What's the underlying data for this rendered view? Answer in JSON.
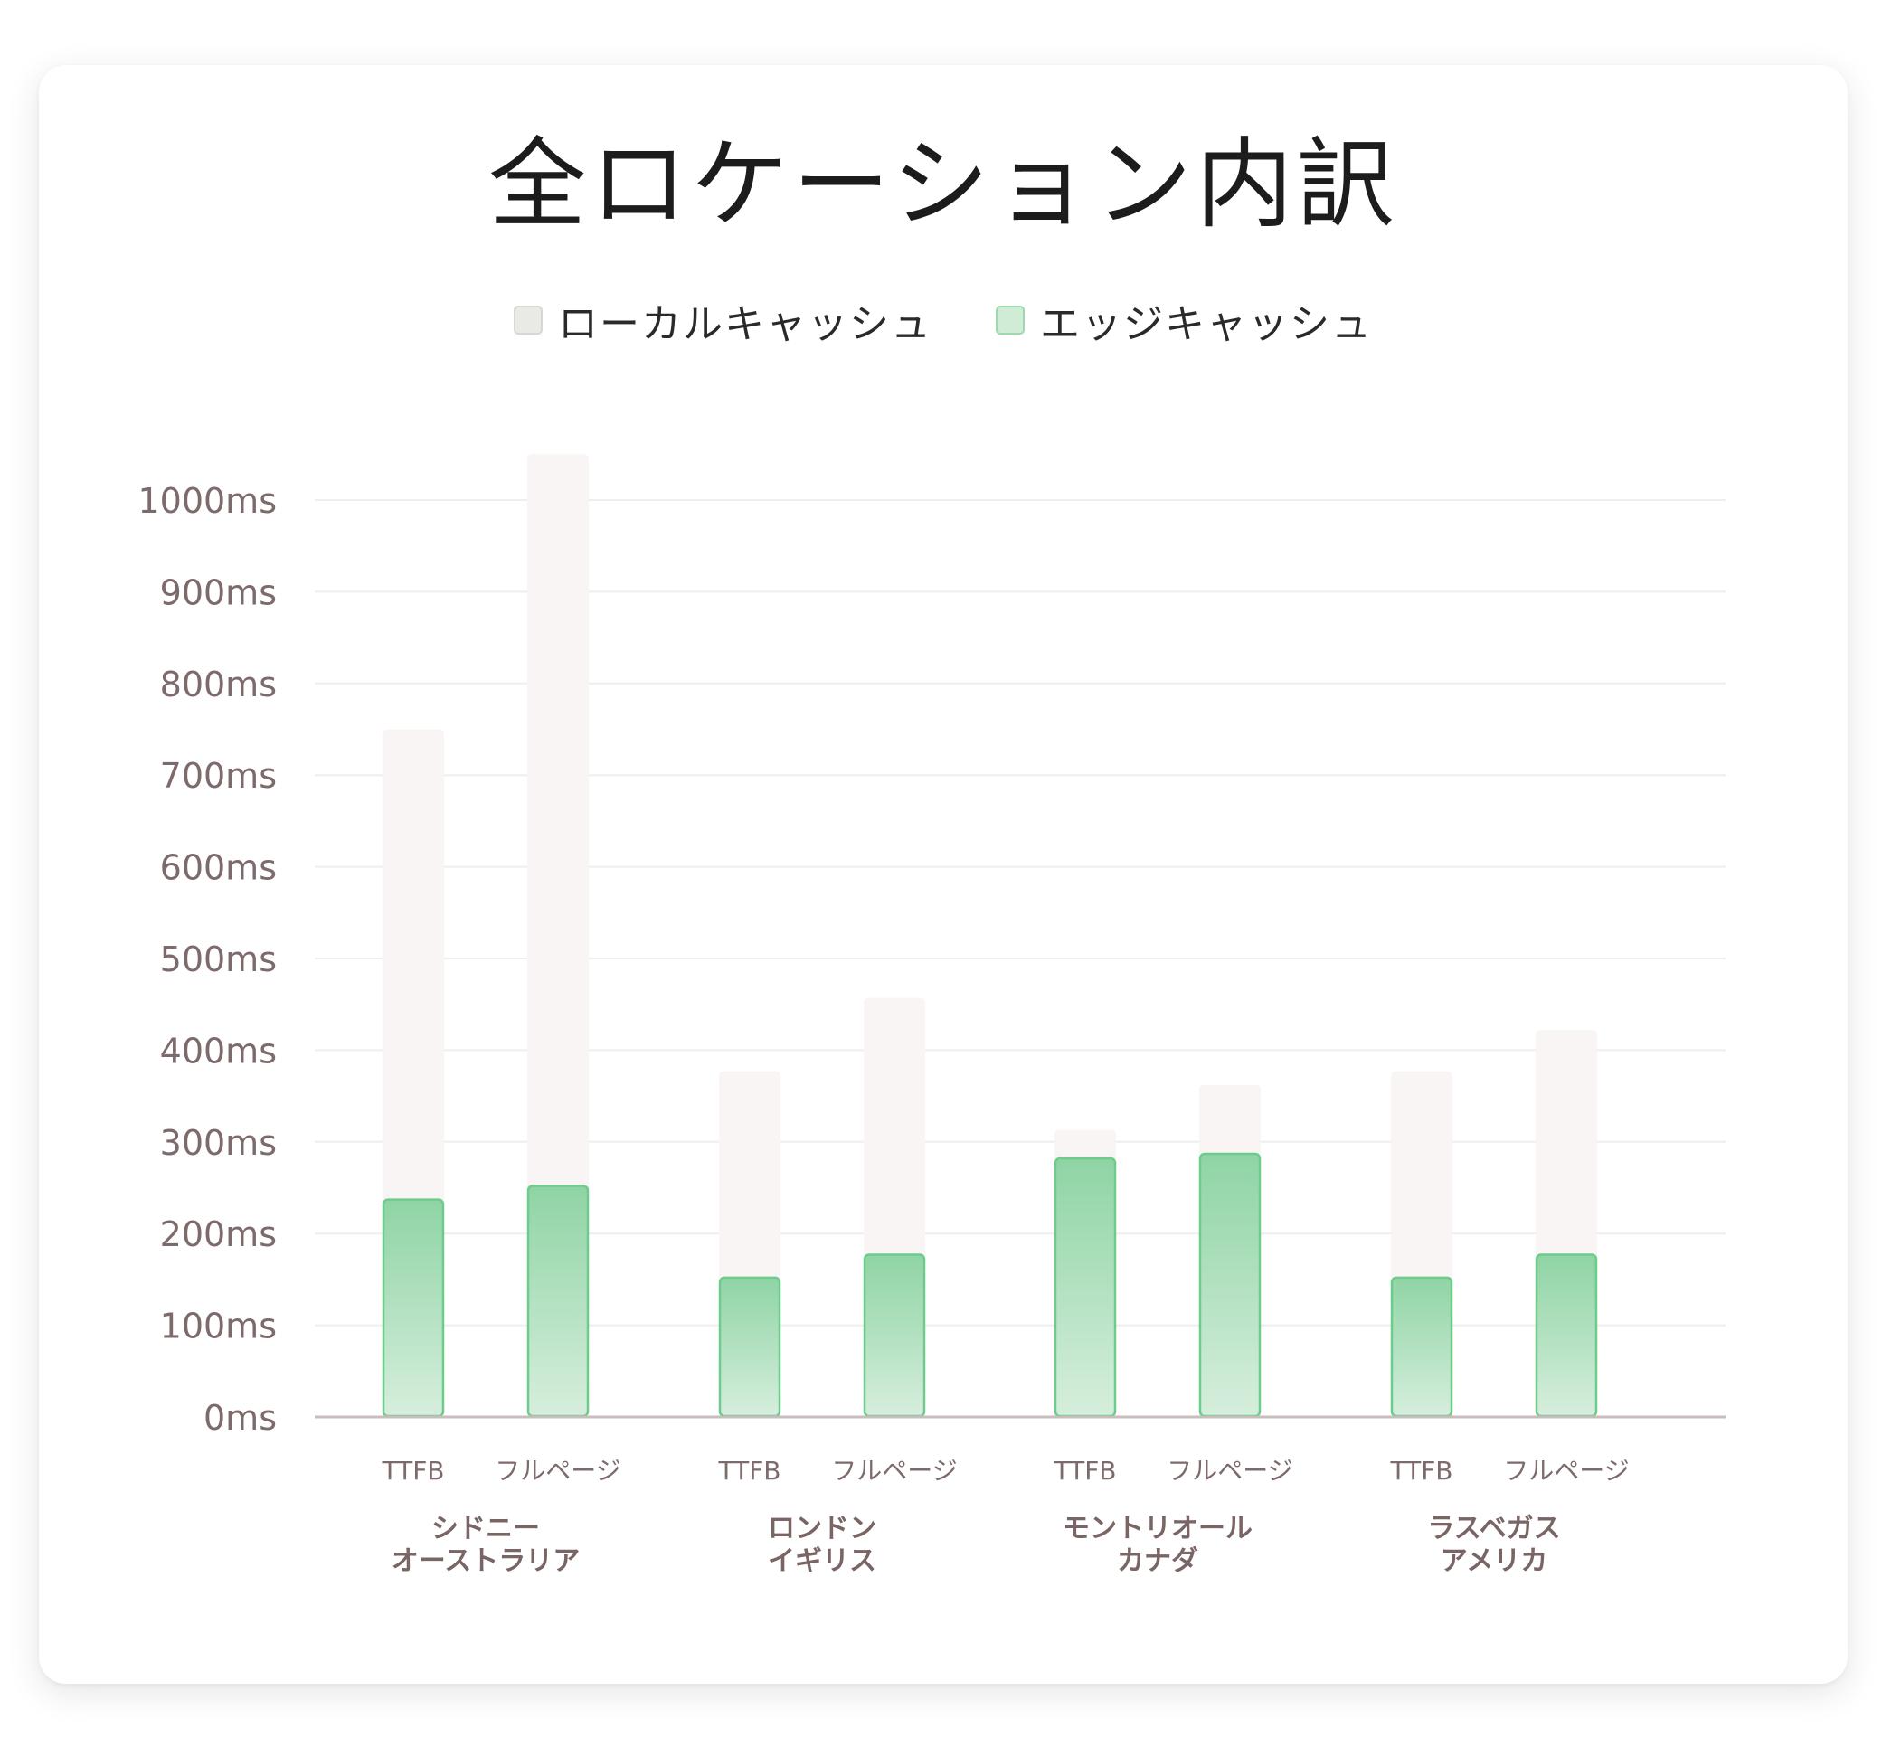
{
  "title": "全ロケーション内訳",
  "legend": [
    {
      "label": "ローカルキャッシュ",
      "color": "#e9e9e5",
      "border": "#d8d8d3"
    },
    {
      "label": "エッジキャッシュ",
      "color": "#d0ecd7",
      "border": "#9ed9ae"
    }
  ],
  "colors": {
    "local_bar": "#f8f5f4",
    "edge_top": "#8fd4a4",
    "edge_bottom": "#d6eedd",
    "edge_stroke": "#6dcb8c",
    "grid": "#eeeeee",
    "axis": "#c8bebe",
    "tick_text": "#7d6a6a",
    "group_text": "#7a6565"
  },
  "chart_data": {
    "type": "bar",
    "title": "全ロケーション内訳",
    "ylim": [
      0,
      1000
    ],
    "yticks": [
      0,
      100,
      200,
      300,
      400,
      500,
      600,
      700,
      800,
      900,
      1000
    ],
    "ytick_labels": [
      "0ms",
      "100ms",
      "200ms",
      "300ms",
      "400ms",
      "500ms",
      "600ms",
      "700ms",
      "800ms",
      "900ms",
      "1000ms"
    ],
    "grid": true,
    "legend_position": "top-center",
    "groups": [
      {
        "label": [
          "シドニー",
          "オーストラリア"
        ],
        "bars": [
          {
            "label": "TTFB",
            "local": 750,
            "edge": 237
          },
          {
            "label": "フルページ",
            "local": 1050,
            "edge": 252
          }
        ]
      },
      {
        "label": [
          "ロンドン",
          "イギリス"
        ],
        "bars": [
          {
            "label": "TTFB",
            "local": 377,
            "edge": 152
          },
          {
            "label": "フルページ",
            "local": 457,
            "edge": 177
          }
        ]
      },
      {
        "label": [
          "モントリオール",
          "カナダ"
        ],
        "bars": [
          {
            "label": "TTFB",
            "local": 313,
            "edge": 282
          },
          {
            "label": "フルページ",
            "local": 362,
            "edge": 287
          }
        ]
      },
      {
        "label": [
          "ラスベガス",
          "アメリカ"
        ],
        "bars": [
          {
            "label": "TTFB",
            "local": 377,
            "edge": 152
          },
          {
            "label": "フルページ",
            "local": 422,
            "edge": 177
          }
        ]
      }
    ],
    "series": [
      {
        "name": "ローカルキャッシュ"
      },
      {
        "name": "エッジキャッシュ"
      }
    ]
  }
}
